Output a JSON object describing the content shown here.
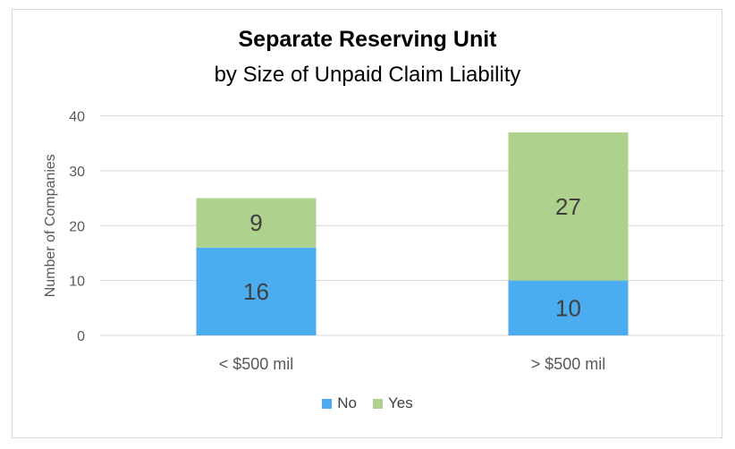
{
  "chart_data": {
    "type": "bar",
    "stacked": true,
    "title": "Separate Reserving Unit",
    "subtitle": "by Size of Unpaid Claim Liability",
    "xlabel": "",
    "ylabel": "Number of Companies",
    "categories": [
      "< $500 mil",
      "> $500 mil"
    ],
    "series": [
      {
        "name": "No",
        "values": [
          16,
          10
        ],
        "color": "#4BACEF"
      },
      {
        "name": "Yes",
        "values": [
          9,
          27
        ],
        "color": "#AFD18E"
      }
    ],
    "ylim": [
      0,
      40
    ],
    "yticks": [
      0,
      10,
      20,
      30,
      40
    ],
    "grid": true,
    "legend": "bottom"
  }
}
